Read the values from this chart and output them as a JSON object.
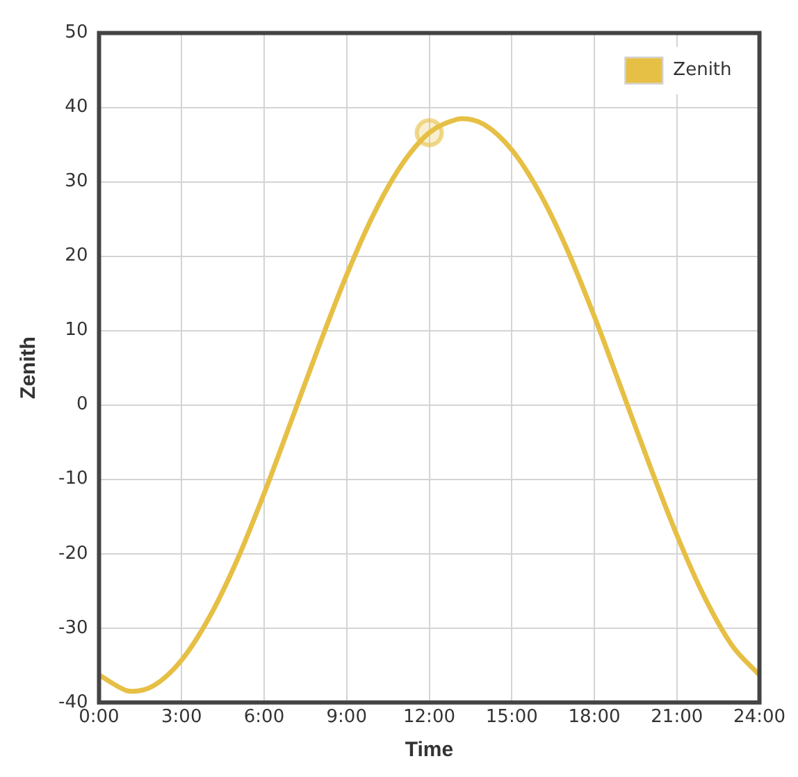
{
  "chart_data": {
    "type": "line",
    "xlabel": "Time",
    "ylabel": "Zenith",
    "xlim": [
      0,
      24
    ],
    "xticks": [
      {
        "value": 0,
        "label": "0:00"
      },
      {
        "value": 3,
        "label": "3:00"
      },
      {
        "value": 6,
        "label": "6:00"
      },
      {
        "value": 9,
        "label": "9:00"
      },
      {
        "value": 12,
        "label": "12:00"
      },
      {
        "value": 15,
        "label": "15:00"
      },
      {
        "value": 18,
        "label": "18:00"
      },
      {
        "value": 21,
        "label": "21:00"
      },
      {
        "value": 24,
        "label": "24:00"
      }
    ],
    "ylim": [
      -40,
      50
    ],
    "yticks": [
      -40,
      -30,
      -20,
      -10,
      0,
      10,
      20,
      30,
      40,
      50
    ],
    "grid": true,
    "legend": "top right",
    "marker": "none",
    "line_style": "solid",
    "series": [
      {
        "name": "Zenith",
        "color": "#e6bf45",
        "x": [
          0,
          1,
          1.2,
          2,
          3,
          4,
          5,
          6,
          7,
          8,
          9,
          10,
          11,
          12,
          13,
          13.2,
          14,
          15,
          16,
          17,
          18,
          19,
          20,
          21,
          22,
          23,
          24
        ],
        "values": [
          -36.3,
          -38.4,
          -38.5,
          -37.7,
          -34.3,
          -28.6,
          -21,
          -11.9,
          -2,
          8,
          17.5,
          25.8,
          32.3,
          36.6,
          38.4,
          38.5,
          37.7,
          34.3,
          28.6,
          21,
          11.9,
          2,
          -8,
          -17.5,
          -25.8,
          -32.3,
          -36.3
        ]
      },
      {
        "type": "scatter",
        "color": "#e6bf45",
        "marker": "circle",
        "x": [
          12
        ],
        "values": [
          36.6
        ]
      }
    ]
  }
}
